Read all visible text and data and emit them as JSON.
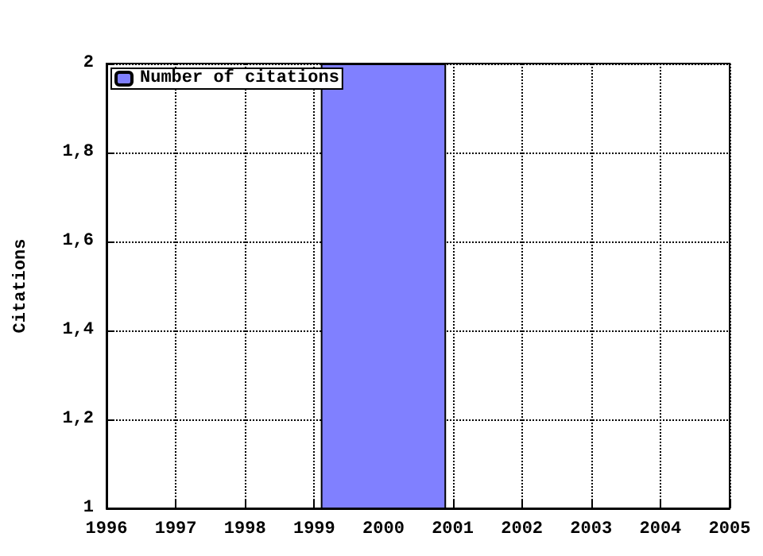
{
  "chart_data": {
    "type": "bar",
    "ylabel": "Citations",
    "x": [
      2000
    ],
    "series": [
      {
        "name": "Number of citations",
        "color": "#8080ff",
        "values": [
          2
        ]
      }
    ],
    "xlim": [
      1996,
      2005
    ],
    "xticks": [
      1996,
      1997,
      1998,
      1999,
      2000,
      2001,
      2002,
      2003,
      2004,
      2005
    ],
    "ylim": [
      1,
      2
    ],
    "yticks": [
      1,
      {
        "value": 1.2,
        "label": "1,2"
      },
      {
        "value": 1.4,
        "label": "1,4"
      },
      {
        "value": 1.6,
        "label": "1,6"
      },
      {
        "value": 1.8,
        "label": "1,8"
      },
      2
    ],
    "grid": true,
    "legend": "top left"
  }
}
